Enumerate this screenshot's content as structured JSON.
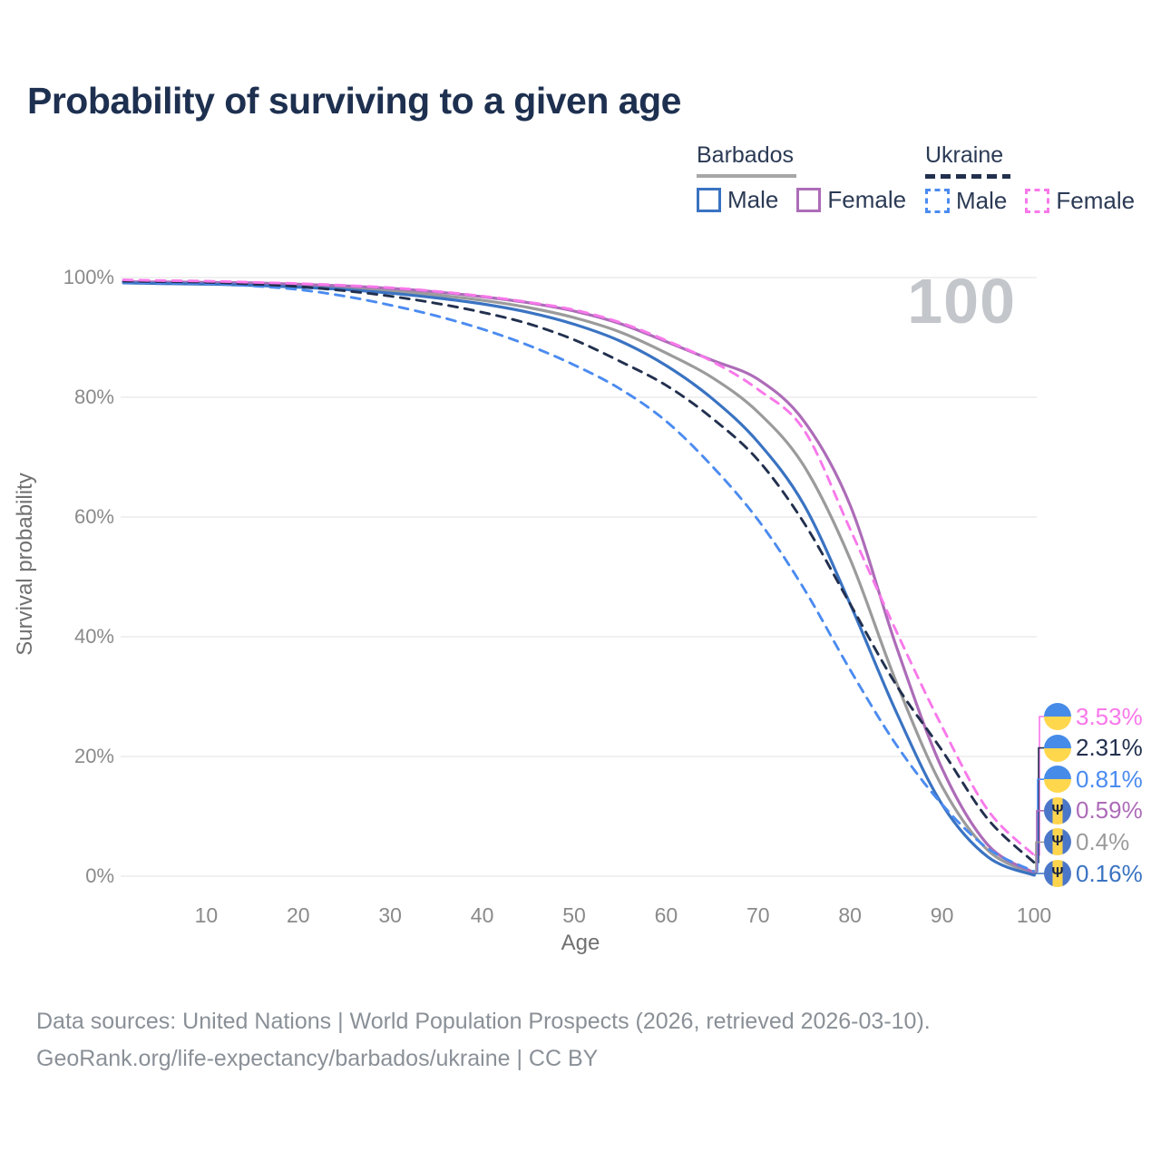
{
  "page": {
    "title": "Probability of surviving to a given age"
  },
  "watermark": {
    "age_counter": "100"
  },
  "legend": {
    "groups": [
      {
        "title": "Barbados",
        "line_style": "solid",
        "items": [
          {
            "label": "Male",
            "color": "#3a73c2"
          },
          {
            "label": "Female",
            "color": "#ad6cb8"
          }
        ]
      },
      {
        "title": "Ukraine",
        "line_style": "dashed",
        "items": [
          {
            "label": "Male",
            "color": "#4b8bf0"
          },
          {
            "label": "Female",
            "color": "#f878ea"
          }
        ]
      }
    ]
  },
  "axes": {
    "x_title": "Age",
    "y_title": "Survival probability",
    "x_tick_labels": [
      "10",
      "20",
      "30",
      "40",
      "50",
      "60",
      "70",
      "80",
      "90",
      "100"
    ],
    "y_tick_labels": [
      "0%",
      "20%",
      "40%",
      "60%",
      "80%",
      "100%"
    ]
  },
  "footer": {
    "line1": "Data sources: United Nations | World Population Prospects (2026, retrieved 2026-03-10).",
    "line2": "GeoRank.org/life-expectancy/barbados/ukraine | CC BY"
  },
  "chart_data": {
    "type": "line",
    "title": "Probability of surviving to a given age",
    "xlabel": "Age",
    "ylabel": "Survival probability",
    "xlim": [
      0,
      100
    ],
    "ylim": [
      0,
      100
    ],
    "grid": "horizontal",
    "legend_position": "top-right",
    "x_tick_values": [
      10,
      20,
      30,
      40,
      50,
      60,
      70,
      80,
      90,
      100
    ],
    "y_tick_values": [
      0,
      20,
      40,
      60,
      80,
      100
    ],
    "x": [
      1,
      5,
      10,
      15,
      20,
      25,
      30,
      35,
      40,
      45,
      50,
      55,
      60,
      65,
      70,
      75,
      80,
      85,
      90,
      95,
      100
    ],
    "series": [
      {
        "name": "Barbados",
        "country": "Barbados",
        "sex": "both",
        "line_style": "solid",
        "color": "#9b9b9b",
        "end_label": "0.4%",
        "values": [
          99.2,
          99.1,
          99.0,
          98.9,
          98.6,
          98.3,
          97.8,
          97.1,
          96.2,
          95.0,
          93.3,
          90.9,
          87.4,
          83.3,
          77.5,
          68.5,
          53.0,
          32.5,
          15.0,
          4.3,
          0.4
        ]
      },
      {
        "name": "Barbados Female",
        "country": "Barbados",
        "sex": "female",
        "line_style": "solid",
        "color": "#ad6cb8",
        "end_label": "0.59%",
        "values": [
          99.3,
          99.25,
          99.2,
          99.1,
          98.9,
          98.6,
          98.2,
          97.6,
          96.8,
          95.8,
          94.4,
          92.3,
          89.3,
          86.2,
          83.0,
          76.0,
          62.0,
          38.5,
          18.0,
          5.2,
          0.59
        ]
      },
      {
        "name": "Barbados Male",
        "country": "Barbados",
        "sex": "male",
        "line_style": "solid",
        "color": "#3a73c2",
        "end_label": "0.16%",
        "values": [
          99.1,
          99.0,
          98.9,
          98.7,
          98.4,
          98.0,
          97.4,
          96.6,
          95.6,
          94.2,
          92.2,
          89.4,
          85.3,
          79.8,
          72.5,
          62.0,
          45.5,
          27.5,
          12.0,
          3.2,
          0.16
        ]
      },
      {
        "name": "Ukraine Male",
        "country": "Ukraine",
        "sex": "male",
        "line_style": "dashed",
        "color": "#4b8bf0",
        "end_label": "0.81%",
        "values": [
          99.2,
          99.1,
          99.0,
          98.6,
          98.0,
          96.9,
          95.4,
          93.6,
          91.4,
          88.7,
          85.4,
          81.4,
          76.0,
          68.5,
          59.5,
          48.0,
          34.5,
          22.0,
          12.0,
          4.6,
          0.81
        ]
      },
      {
        "name": "Ukraine",
        "country": "Ukraine",
        "sex": "both",
        "line_style": "dashed",
        "color": "#22304e",
        "end_label": "2.31%",
        "values": [
          99.4,
          99.3,
          99.2,
          98.9,
          98.5,
          97.8,
          96.9,
          95.7,
          94.2,
          92.3,
          89.6,
          86.0,
          82.0,
          76.5,
          69.5,
          59.0,
          45.5,
          32.0,
          21.0,
          9.5,
          2.31
        ]
      },
      {
        "name": "Ukraine Female",
        "country": "Ukraine",
        "sex": "female",
        "line_style": "dashed",
        "color": "#f878ea",
        "end_label": "3.53%",
        "values": [
          99.6,
          99.5,
          99.4,
          99.2,
          99.0,
          98.7,
          98.3,
          97.7,
          96.9,
          95.9,
          94.6,
          92.5,
          89.5,
          86.0,
          81.3,
          74.5,
          58.0,
          41.0,
          25.0,
          11.0,
          3.53
        ]
      }
    ],
    "end_labels": [
      {
        "text": "3.53%",
        "series": "Ukraine Female",
        "flag": "ukraine",
        "color": "#f878ea"
      },
      {
        "text": "2.31%",
        "series": "Ukraine",
        "flag": "ukraine",
        "color": "#22304e"
      },
      {
        "text": "0.81%",
        "series": "Ukraine Male",
        "flag": "ukraine",
        "color": "#4b8bf0"
      },
      {
        "text": "0.59%",
        "series": "Barbados Female",
        "flag": "barbados",
        "color": "#ad6cb8"
      },
      {
        "text": "0.4%",
        "series": "Barbados",
        "flag": "barbados",
        "color": "#9b9b9b"
      },
      {
        "text": "0.16%",
        "series": "Barbados Male",
        "flag": "barbados",
        "color": "#3a73c2"
      }
    ]
  }
}
